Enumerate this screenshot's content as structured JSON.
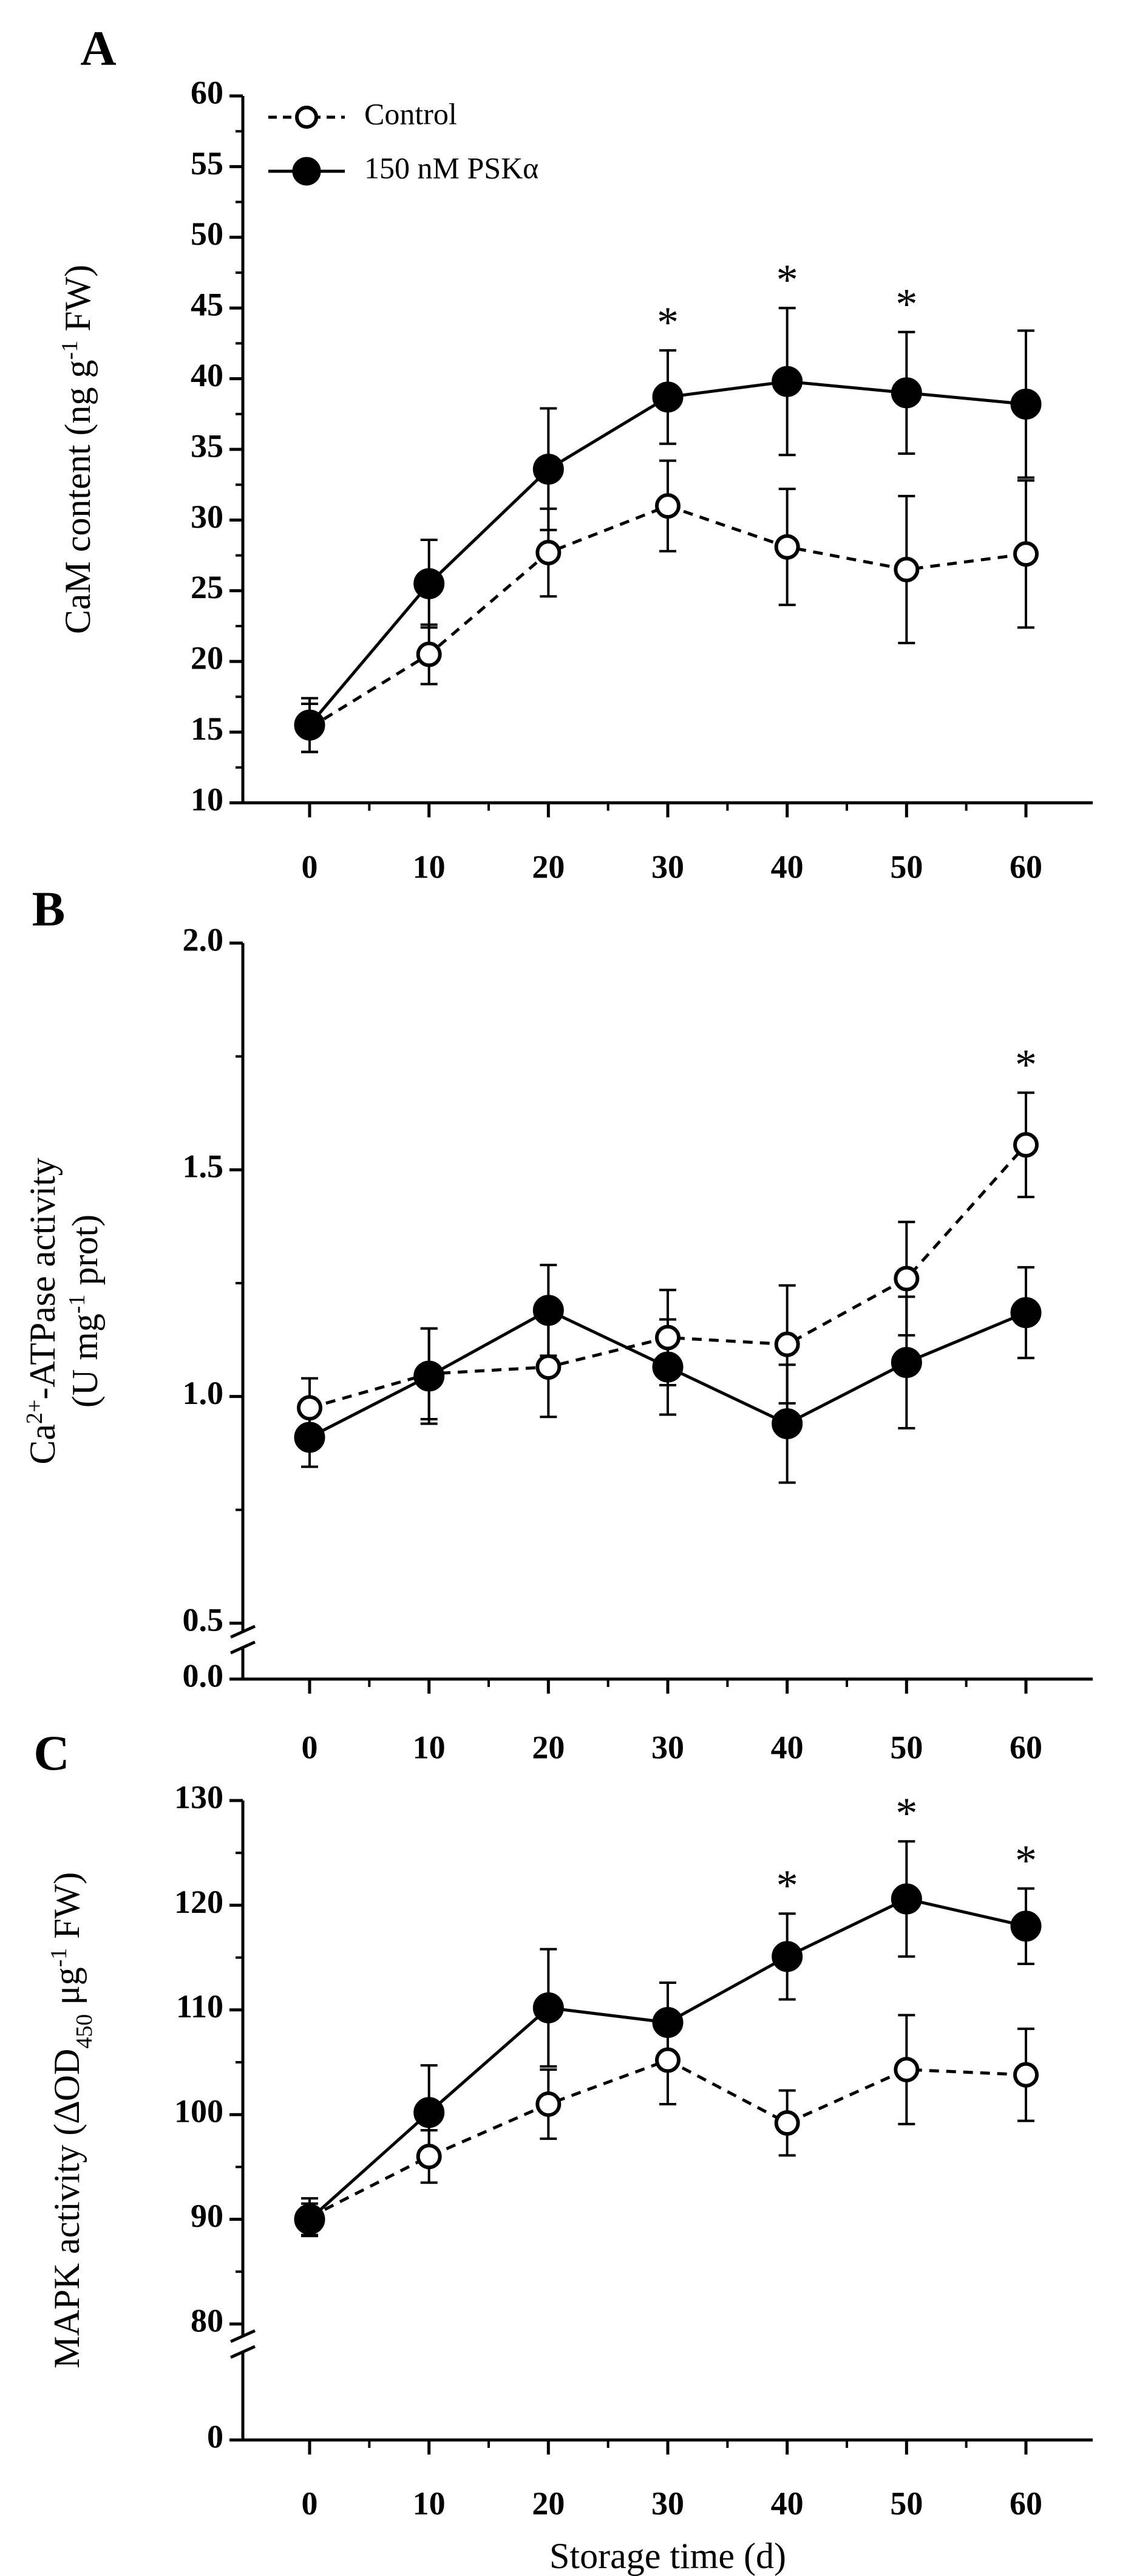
{
  "colors": {
    "ink": "#000000",
    "background": "#ffffff",
    "hollow_marker": "#ffffff"
  },
  "legend": {
    "items": [
      {
        "label": "Control",
        "line": "dashed",
        "marker": "open-circle"
      },
      {
        "label": "150 nM PSKα",
        "line": "solid",
        "marker": "filled-circle"
      }
    ]
  },
  "significance_marker": "*",
  "chart_data": [
    {
      "panel": "A",
      "type": "line",
      "ylabel_parts": [
        "CaM content (ng g",
        "-1",
        " FW)"
      ],
      "xlabel": "",
      "x": [
        0,
        10,
        20,
        30,
        40,
        50,
        60
      ],
      "x_ticks": [
        "0",
        "10",
        "20",
        "30",
        "40",
        "50",
        "60"
      ],
      "ylim": [
        10,
        60
      ],
      "y_ticks": [
        10,
        15,
        20,
        25,
        30,
        35,
        40,
        45,
        50,
        55,
        60
      ],
      "y_tick_labels": [
        "10",
        "15",
        "20",
        "25",
        "30",
        "35",
        "40",
        "45",
        "50",
        "55",
        "60"
      ],
      "series": [
        {
          "name": "Control",
          "style": "dashed-open",
          "values": [
            15.3,
            20.5,
            27.7,
            31.0,
            28.1,
            26.5,
            27.6
          ],
          "errors": [
            1.7,
            2.1,
            3.1,
            3.2,
            4.1,
            5.2,
            5.2
          ]
        },
        {
          "name": "150 nM PSKα",
          "style": "solid-filled",
          "values": [
            15.5,
            25.5,
            33.6,
            38.7,
            39.8,
            39.0,
            38.2
          ],
          "errors": [
            1.9,
            3.1,
            4.3,
            3.3,
            5.2,
            4.3,
            5.2
          ]
        }
      ],
      "significant_x": [
        30,
        40,
        50
      ]
    },
    {
      "panel": "B",
      "type": "line",
      "ylabel_parts": [
        "Ca",
        "2+",
        "-ATPase activity"
      ],
      "ylabel_line2_parts": [
        "(U mg",
        "-1",
        " prot)"
      ],
      "xlabel": "",
      "x": [
        0,
        10,
        20,
        30,
        40,
        50,
        60
      ],
      "x_ticks": [
        "0",
        "10",
        "20",
        "30",
        "40",
        "50",
        "60"
      ],
      "ylim": [
        0.5,
        2.0
      ],
      "y_ticks": [
        0.5,
        1.0,
        1.5,
        2.0
      ],
      "y_tick_labels": [
        "0.5",
        "1.0",
        "1.5",
        "2.0"
      ],
      "axis_break": {
        "below_value": 0.5,
        "zero_label": "0.0"
      },
      "series": [
        {
          "name": "Control",
          "style": "dashed-open",
          "values": [
            0.975,
            1.05,
            1.065,
            1.13,
            1.115,
            1.26,
            1.555
          ],
          "errors": [
            0.065,
            0.1,
            0.11,
            0.105,
            0.13,
            0.125,
            0.115
          ]
        },
        {
          "name": "150 nM PSKα",
          "style": "solid-filled",
          "values": [
            0.91,
            1.045,
            1.19,
            1.065,
            0.94,
            1.075,
            1.185
          ],
          "errors": [
            0.065,
            0.105,
            0.1,
            0.105,
            0.13,
            0.145,
            0.1
          ]
        }
      ],
      "significant_x": [
        60
      ]
    },
    {
      "panel": "C",
      "type": "line",
      "ylabel_parts": [
        "MAPK activity (∆OD",
        "450",
        " μg",
        "-1",
        " FW)"
      ],
      "xlabel": "Storage time (d)",
      "x": [
        0,
        10,
        20,
        30,
        40,
        50,
        60
      ],
      "x_ticks": [
        "0",
        "10",
        "20",
        "30",
        "40",
        "50",
        "60"
      ],
      "ylim": [
        80,
        130
      ],
      "y_ticks": [
        80,
        90,
        100,
        110,
        120,
        130
      ],
      "y_tick_labels": [
        "80",
        "90",
        "100",
        "110",
        "120",
        "130"
      ],
      "axis_break": {
        "below_value": 80,
        "zero_label": "0"
      },
      "series": [
        {
          "name": "Control",
          "style": "dashed-open",
          "values": [
            90.2,
            96.0,
            101.0,
            105.2,
            99.2,
            104.3,
            103.8
          ],
          "errors": [
            1.8,
            2.5,
            3.3,
            4.2,
            3.1,
            5.2,
            4.4
          ]
        },
        {
          "name": "150 nM PSKα",
          "style": "solid-filled",
          "values": [
            90.0,
            100.2,
            110.2,
            108.8,
            115.1,
            120.6,
            118.0
          ],
          "errors": [
            1.5,
            4.5,
            5.6,
            3.8,
            4.1,
            5.5,
            3.6
          ]
        }
      ],
      "significant_x": [
        40,
        50,
        60
      ]
    }
  ]
}
